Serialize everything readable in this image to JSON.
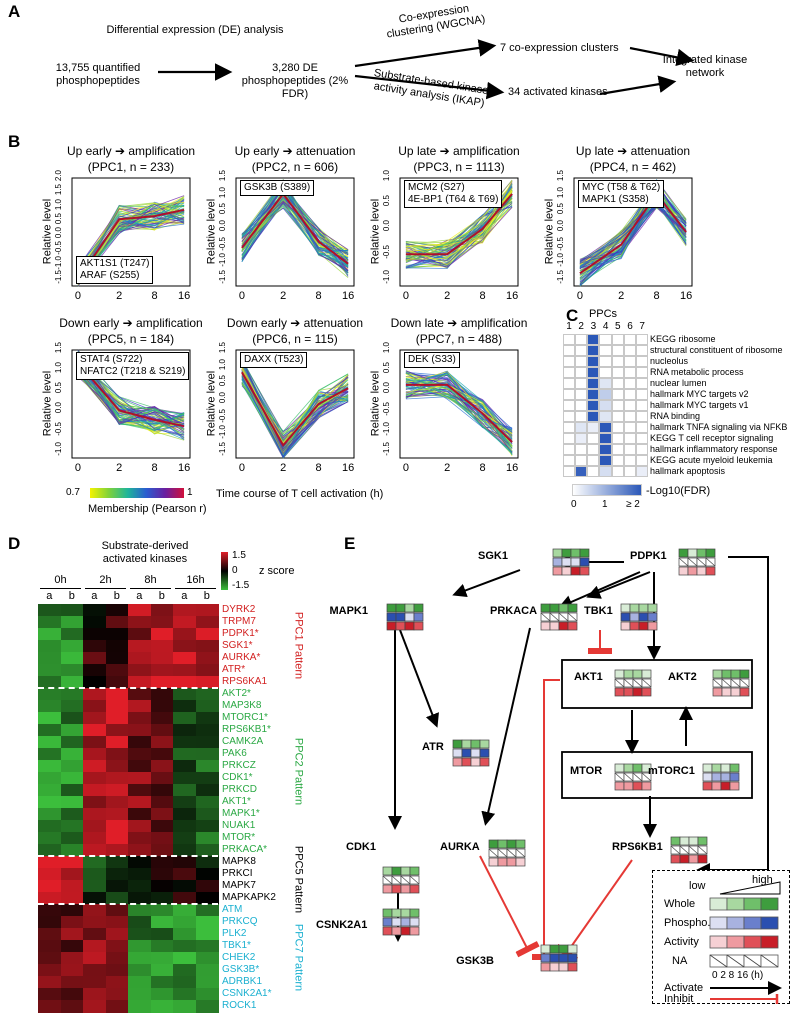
{
  "panel_labels": {
    "a": "A",
    "b": "B",
    "c": "C",
    "d": "D",
    "e": "E"
  },
  "flow": {
    "input": "13,755 quantified phosphopeptides",
    "de_analysis": "Differential expression (DE) analysis",
    "de_result": "3,280 DE phosphopeptides (2% FDR)",
    "wgcna": "Co-expression clustering (WGCNA)",
    "ikap": "Substrate-based kinase activity analysis (IKAP)",
    "clusters": "7 co-expression clusters",
    "kinases": "34 activated kinases",
    "network": "Integrated kinase network"
  },
  "ppc_plots": [
    {
      "pattern": "Up early ➔ amplification",
      "name": "(PPC1, n = 233)",
      "note1": "AKT1S1 (T247)",
      "note2": "ARAF (S255)",
      "ylabel": "Relative level",
      "yticks": [
        "2.0",
        "1.5",
        "1.0",
        "0.5",
        "0.0",
        "-0.5",
        "-1.0",
        "-1.5"
      ],
      "means": [
        -1.5,
        0.4,
        0.5,
        0.7
      ]
    },
    {
      "pattern": "Up early ➔ attenuation",
      "name": "(PPC2, n = 606)",
      "note1": "GSK3B (S389)",
      "note2": "",
      "ylabel": "Relative level",
      "yticks": [
        "1.5",
        "1.0",
        "0.5",
        "0.0",
        "-0.5",
        "-1.0",
        "-1.5"
      ],
      "means": [
        -0.5,
        1.2,
        -0.3,
        -1.0
      ]
    },
    {
      "pattern": "Up late ➔ amplification",
      "name": "(PPC3, n = 1113)",
      "note1": "MCM2 (S27)",
      "note2": "4E-BP1 (T64 & T69)",
      "ylabel": "Relative level",
      "yticks": [
        "1.0",
        "0.5",
        "0.0",
        "-0.5",
        "-1.0"
      ],
      "means": [
        -0.7,
        -0.7,
        0.1,
        1.2
      ]
    },
    {
      "pattern": "Up late ➔ attenuation",
      "name": "(PPC4, n = 462)",
      "note1": "MYC (T58 & T62)",
      "note2": "MAPK1 (S358)",
      "ylabel": "Relative level",
      "yticks": [
        "1.5",
        "1.0",
        "0.5",
        "0.0",
        "-0.5",
        "-1.0",
        "-1.5"
      ],
      "means": [
        -1.3,
        -0.4,
        1.2,
        0.0
      ]
    },
    {
      "pattern": "Down early ➔ amplification",
      "name": "(PPC5, n = 184)",
      "note1": "STAT4 (S722)",
      "note2": "NFATC2 (T218 & S219)",
      "ylabel": "Relative level",
      "yticks": [
        "1.5",
        "1.0",
        "0.5",
        "0.0",
        "-0.5",
        "-1.0"
      ],
      "means": [
        1.3,
        -0.2,
        -0.5,
        -0.7
      ]
    },
    {
      "pattern": "Down early ➔ attenuation",
      "name": "(PPC6, n = 115)",
      "note1": "DAXX (T523)",
      "note2": "",
      "ylabel": "Relative level",
      "yticks": [
        "1.5",
        "1.0",
        "0.5",
        "0.0",
        "-0.5",
        "-1.0",
        "-1.5"
      ],
      "means": [
        1.0,
        -1.3,
        0.0,
        0.5
      ]
    },
    {
      "pattern": "Down late ➔ amplification",
      "name": "(PPC7, n = 488)",
      "note1": "DEK (S33)",
      "note2": "",
      "ylabel": "Relative level",
      "yticks": [
        "1.0",
        "0.5",
        "0.0",
        "-0.5",
        "-1.0",
        "-1.5"
      ],
      "means": [
        0.6,
        0.6,
        -0.3,
        -1.2
      ]
    }
  ],
  "xticks": [
    "0",
    "2",
    "8",
    "16"
  ],
  "time_label": "Time course of T cell activation (h)",
  "membership": {
    "label": "Membership (Pearson r)",
    "min": "0.7",
    "max": "1"
  },
  "enrichment": {
    "title": "PPCs",
    "cols": [
      "1",
      "2",
      "3",
      "4",
      "5",
      "6",
      "7"
    ],
    "terms": [
      "KEGG ribosome",
      "structural constituent of ribosome",
      "nucleolus",
      "RNA metabolic process",
      "nuclear lumen",
      "hallmark MYC targets v2",
      "hallmark MYC targets v1",
      "RNA binding",
      "hallmark TNFA signaling via NFKB",
      "KEGG T cell receptor signaling",
      "hallmark inflammatory response",
      "KEGG acute myeloid leukemia",
      "hallmark apoptosis"
    ],
    "matrix": [
      [
        0,
        0,
        2,
        0,
        0,
        0,
        0
      ],
      [
        0,
        0,
        2,
        0,
        0,
        0,
        0
      ],
      [
        0,
        0,
        2,
        0,
        0,
        0,
        0
      ],
      [
        0,
        0,
        2,
        0,
        0,
        0,
        0
      ],
      [
        0,
        0,
        2,
        0.3,
        0,
        0,
        0
      ],
      [
        0,
        0,
        2,
        0.6,
        0,
        0,
        0
      ],
      [
        0,
        0,
        2,
        0.4,
        0,
        0,
        0
      ],
      [
        0,
        0,
        2,
        0.3,
        0,
        0,
        0
      ],
      [
        0,
        0.3,
        0.2,
        2,
        0,
        0,
        0
      ],
      [
        0,
        0.2,
        0,
        2,
        0,
        0,
        0
      ],
      [
        0,
        0,
        0,
        2,
        0,
        0,
        0
      ],
      [
        0,
        0,
        0,
        2,
        0,
        0,
        0
      ],
      [
        0,
        1.9,
        0,
        0.4,
        0,
        0,
        0.2
      ]
    ],
    "scale_ticks": [
      "0",
      "1",
      "≥ 2"
    ],
    "scale_label": "-Log10(FDR)"
  },
  "heatmap": {
    "title": "Substrate-derived activated kinases",
    "timepoints": [
      "0h",
      "2h",
      "8h",
      "16h"
    ],
    "replicates": [
      "a",
      "b",
      "a",
      "b",
      "a",
      "b",
      "a",
      "b"
    ],
    "zscore_label": "z score",
    "zmax": "1.5",
    "zmid": "0",
    "zmin": "-1.5",
    "groups": [
      {
        "pattern": "PPC1 Pattern",
        "color": "#d22020",
        "kinases": [
          "DYRK2",
          "TRPM7",
          "PDPK1*",
          "SGK1*",
          "AURKA*",
          "ATR*",
          "RPS6KA1"
        ]
      },
      {
        "pattern": "PPC2 Pattern",
        "color": "#2aa843",
        "kinases": [
          "AKT2*",
          "MAP3K8",
          "MTORC1*",
          "RPS6KB1*",
          "CAMK2A",
          "PAK6",
          "PRKCZ",
          "CDK1*",
          "PRKCD",
          "AKT1*",
          "MAPK1*",
          "NUAK1",
          "MTOR*",
          "PRKACA*"
        ]
      },
      {
        "pattern": "PPC5 Pattern",
        "color": "#000000",
        "kinases": [
          "MAPK8",
          "PRKCI",
          "MAPK7",
          "MAPKAPK2"
        ]
      },
      {
        "pattern": "PPC7 Pattern",
        "color": "#1ab0d0",
        "kinases": [
          "ATM",
          "PRKCQ",
          "PLK2",
          "TBK1*",
          "CHEK2",
          "GSK3B*",
          "ADRBK1",
          "CSNK2A1*",
          "ROCK1"
        ]
      }
    ]
  },
  "network": {
    "nodes": [
      "SGK1",
      "PDPK1",
      "MAPK1",
      "PRKACA",
      "TBK1",
      "AKT1",
      "AKT2",
      "ATR",
      "MTOR",
      "mTORC1",
      "CDK1",
      "AURKA",
      "RPS6KB1",
      "CSNK2A1",
      "GSK3B"
    ],
    "legend": {
      "low": "low",
      "high": "high",
      "rows": [
        "Whole",
        "Phospho.",
        "Activity",
        "NA"
      ],
      "times": "0 2 8 16 (h)",
      "activate": "Activate",
      "inhibit": "Inhibit"
    }
  },
  "colors": {
    "green": "#4caf50",
    "blue": "#2b58b8",
    "red": "#d62b2b",
    "inhibit": "#e53935"
  }
}
